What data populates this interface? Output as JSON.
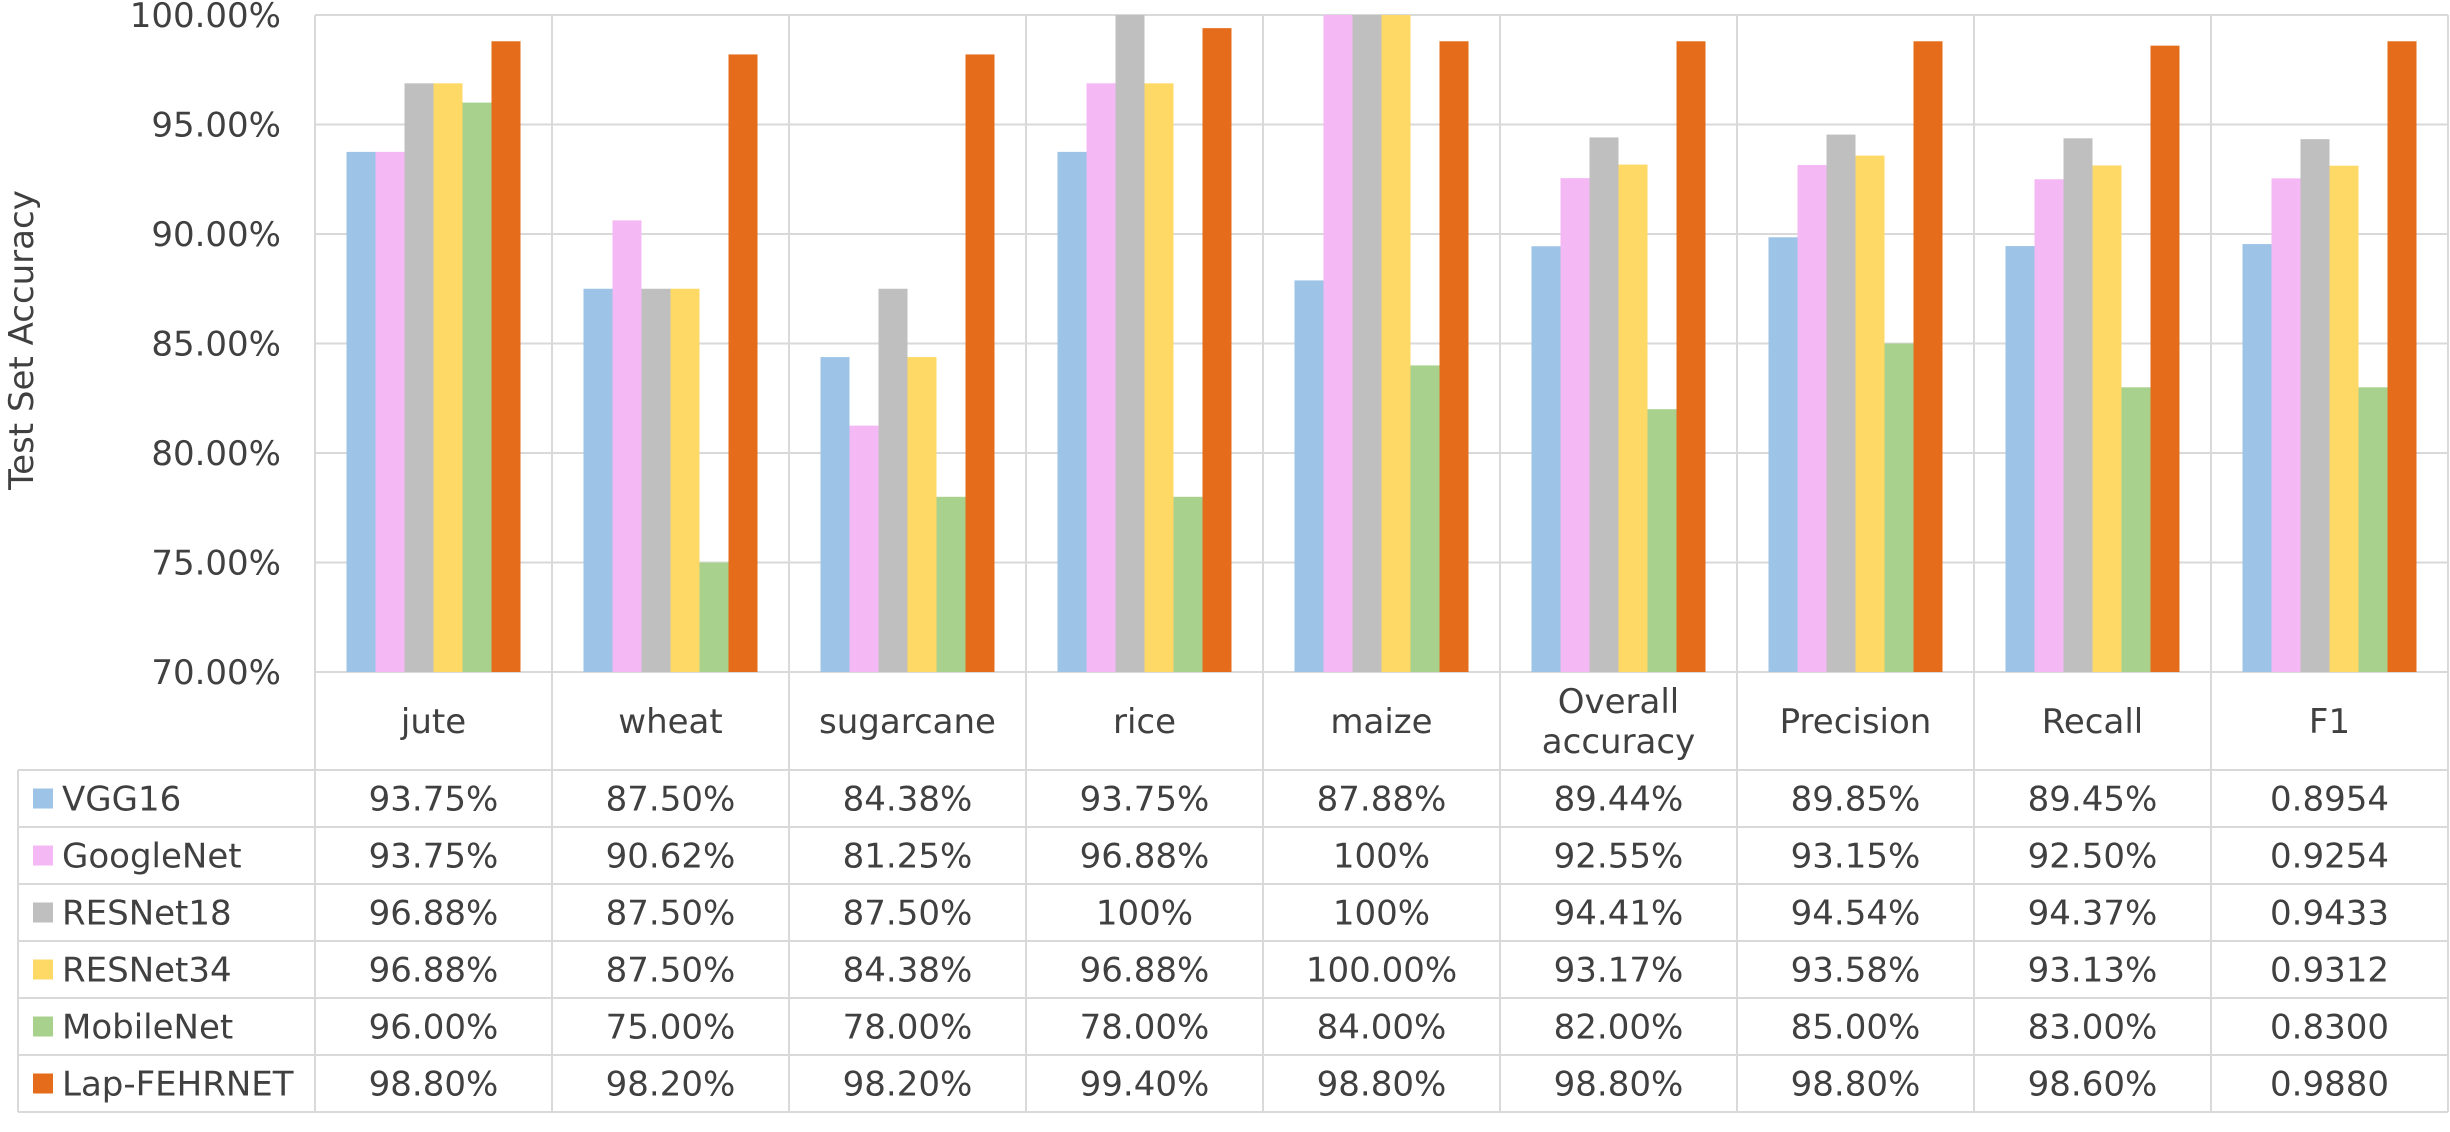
{
  "chart_data": {
    "type": "bar",
    "title": "",
    "ylabel": "Test Set Accuracy",
    "xlabel": "",
    "ylim": [
      0.7,
      1.0
    ],
    "yticks": [
      0.7,
      0.75,
      0.8,
      0.85,
      0.9,
      0.95,
      1.0
    ],
    "ytick_labels": [
      "70.00%",
      "75.00%",
      "80.00%",
      "85.00%",
      "90.00%",
      "95.00%",
      "100.00%"
    ],
    "grid": true,
    "legend_placement": "data-table",
    "categories": [
      [
        "jute"
      ],
      [
        "wheat"
      ],
      [
        "sugarcane"
      ],
      [
        "rice"
      ],
      [
        "maize"
      ],
      [
        "Overall",
        "accuracy"
      ],
      [
        "Precision"
      ],
      [
        "Recall"
      ],
      [
        "F1"
      ]
    ],
    "series": [
      {
        "name": "VGG16",
        "color": "#9DC3E6",
        "values": [
          0.9375,
          0.875,
          0.8438,
          0.9375,
          0.8788,
          0.8944,
          0.8985,
          0.8945,
          0.8954
        ],
        "labels": [
          "93.75%",
          "87.50%",
          "84.38%",
          "93.75%",
          "87.88%",
          "89.44%",
          "89.85%",
          "89.45%",
          "0.8954"
        ]
      },
      {
        "name": "GoogleNet",
        "color": "#F4B8F5",
        "values": [
          0.9375,
          0.9062,
          0.8125,
          0.9688,
          1.0,
          0.9255,
          0.9315,
          0.925,
          0.9254
        ],
        "labels": [
          "93.75%",
          "90.62%",
          "81.25%",
          "96.88%",
          "100%",
          "92.55%",
          "93.15%",
          "92.50%",
          "0.9254"
        ]
      },
      {
        "name": "RESNet18",
        "color": "#BFBFBF",
        "values": [
          0.9688,
          0.875,
          0.875,
          1.0,
          1.0,
          0.9441,
          0.9454,
          0.9437,
          0.9433
        ],
        "labels": [
          "96.88%",
          "87.50%",
          "87.50%",
          "100%",
          "100%",
          "94.41%",
          "94.54%",
          "94.37%",
          "0.9433"
        ]
      },
      {
        "name": "RESNet34",
        "color": "#FFD966",
        "values": [
          0.9688,
          0.875,
          0.8438,
          0.9688,
          1.0,
          0.9317,
          0.9358,
          0.9313,
          0.9312
        ],
        "labels": [
          "96.88%",
          "87.50%",
          "84.38%",
          "96.88%",
          "100.00%",
          "93.17%",
          "93.58%",
          "93.13%",
          "0.9312"
        ]
      },
      {
        "name": "MobileNet",
        "color": "#A9D18E",
        "values": [
          0.96,
          0.75,
          0.78,
          0.78,
          0.84,
          0.82,
          0.85,
          0.83,
          0.83
        ],
        "labels": [
          "96.00%",
          "75.00%",
          "78.00%",
          "78.00%",
          "84.00%",
          "82.00%",
          "85.00%",
          "83.00%",
          "0.8300"
        ]
      },
      {
        "name": "Lap-FEHRNET",
        "color": "#E46C1A",
        "values": [
          0.988,
          0.982,
          0.982,
          0.994,
          0.988,
          0.988,
          0.988,
          0.986,
          0.988
        ],
        "labels": [
          "98.80%",
          "98.20%",
          "98.20%",
          "99.40%",
          "98.80%",
          "98.80%",
          "98.80%",
          "98.60%",
          "0.9880"
        ]
      }
    ]
  }
}
